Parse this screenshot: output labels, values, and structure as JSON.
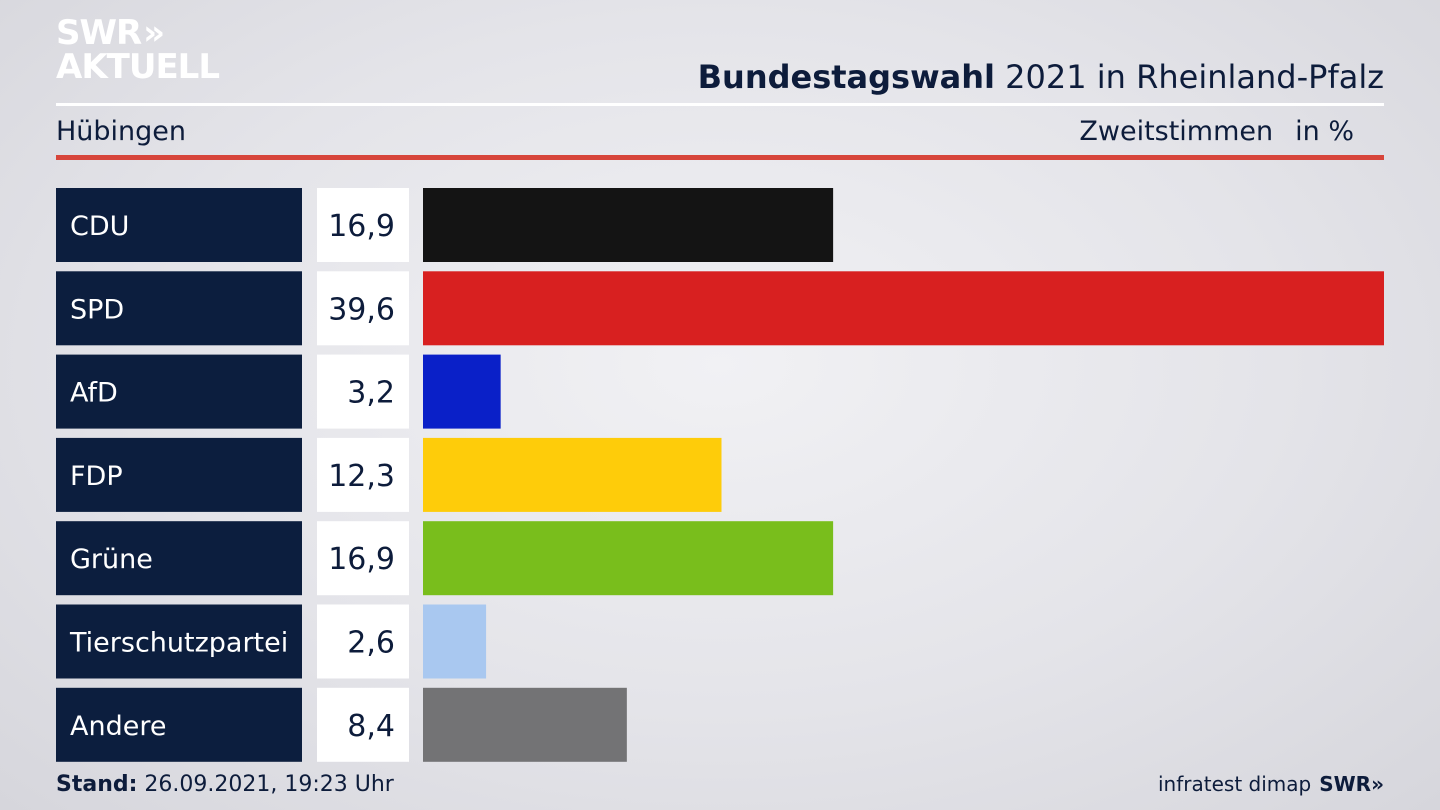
{
  "brand": {
    "logo_line1": "SWR",
    "logo_arrows": "»",
    "logo_line2": "AKTUELL"
  },
  "header": {
    "title_bold": "Bundestagswahl",
    "title_rest": " 2021 in Rheinland-Pfalz",
    "region": "Hübingen",
    "measure": "Zweitstimmen",
    "unit": "in %"
  },
  "chart_data": {
    "type": "bar",
    "orientation": "horizontal",
    "categories": [
      "CDU",
      "SPD",
      "AfD",
      "FDP",
      "Grüne",
      "Tierschutzpartei",
      "Andere"
    ],
    "values": [
      16.9,
      39.6,
      3.2,
      12.3,
      16.9,
      2.6,
      8.4
    ],
    "value_labels": [
      "16,9",
      "39,6",
      "3,2",
      "12,3",
      "16,9",
      "2,6",
      "8,4"
    ],
    "colors": [
      "#141414",
      "#d82020",
      "#0a20c8",
      "#fecc0a",
      "#79be1c",
      "#a9c8f0",
      "#737375"
    ],
    "xlim": [
      0,
      39.6
    ]
  },
  "footer": {
    "stand_label": "Stand:",
    "stand_value": " 26.09.2021, 19:23 Uhr",
    "source": "infratest dimap",
    "source_brand": "SWR»"
  }
}
